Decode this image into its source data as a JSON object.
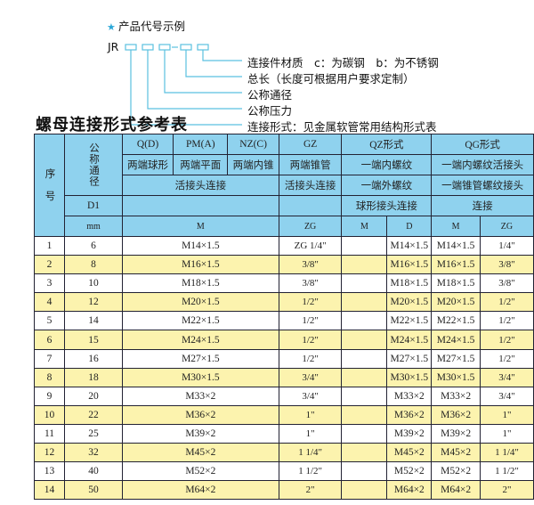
{
  "example": {
    "star_color": "#2aa7d8",
    "heading": "产品代号示例",
    "code_prefix": "JR",
    "box_color": "#5bc0e0",
    "labels": [
      "连接件材质　c：为碳钢　b：为不锈钢",
      "总长（长度可根据用户要求定制）",
      "公称通径",
      "公称压力",
      "连接形式：见金属软管常用结构形式表"
    ]
  },
  "table_title": "螺母连接形式参考表",
  "header": {
    "seq": "序　号",
    "nominal": "公称通径",
    "d1": "D1",
    "mm": "mm",
    "q": "Q(D)",
    "pm": "PM(A)",
    "nz": "NZ(C)",
    "gz": "GZ",
    "qz": "QZ形式",
    "qg": "QG形式",
    "q_desc": "两端球形",
    "pm_desc": "两端平面",
    "nz_desc": "两端内锥",
    "gz_desc": "两端锥管",
    "qz_desc1": "一端内螺纹",
    "qg_desc1": "一端内螺纹活接头",
    "union": "活接头连接",
    "gz_union": "活接头连接",
    "qz_desc2": "一端外螺纹",
    "qg_desc2": "一端锥管螺纹接头",
    "qz_desc3": "球形接头连接",
    "qg_desc3": "连接",
    "m": "M",
    "zg": "ZG",
    "qz_m": "M",
    "qz_d": "D",
    "qg_m": "M",
    "qg_zg": "ZG"
  },
  "colors": {
    "header_bg": "#8fd2ee",
    "stripe": "#fcf3ae"
  },
  "rows": [
    [
      "1",
      "6",
      "M14×1.5",
      "ZG 1/4\"",
      "",
      "M14×1.5",
      "M14×1.5",
      "1/4\""
    ],
    [
      "2",
      "8",
      "M16×1.5",
      "3/8\"",
      "",
      "M16×1.5",
      "M16×1.5",
      "3/8\""
    ],
    [
      "3",
      "10",
      "M18×1.5",
      "3/8\"",
      "",
      "M18×1.5",
      "M18×1.5",
      "3/8\""
    ],
    [
      "4",
      "12",
      "M20×1.5",
      "1/2\"",
      "",
      "M20×1.5",
      "M20×1.5",
      "1/2\""
    ],
    [
      "5",
      "14",
      "M22×1.5",
      "1/2\"",
      "",
      "M22×1.5",
      "M22×1.5",
      "1/2\""
    ],
    [
      "6",
      "15",
      "M24×1.5",
      "1/2\"",
      "",
      "M24×1.5",
      "M24×1.5",
      "1/2\""
    ],
    [
      "7",
      "16",
      "M27×1.5",
      "1/2\"",
      "",
      "M27×1.5",
      "M27×1.5",
      "1/2\""
    ],
    [
      "8",
      "18",
      "M30×1.5",
      "3/4\"",
      "",
      "M30×1.5",
      "M30×1.5",
      "3/4\""
    ],
    [
      "9",
      "20",
      "M33×2",
      "3/4\"",
      "",
      "M33×2",
      "M33×2",
      "3/4\""
    ],
    [
      "10",
      "22",
      "M36×2",
      "1\"",
      "",
      "M36×2",
      "M36×2",
      "1\""
    ],
    [
      "11",
      "25",
      "M39×2",
      "1\"",
      "",
      "M39×2",
      "M39×2",
      "1\""
    ],
    [
      "12",
      "32",
      "M45×2",
      "1 1/4\"",
      "",
      "M45×2",
      "M45×2",
      "1 1/4\""
    ],
    [
      "13",
      "40",
      "M52×2",
      "1 1/2\"",
      "",
      "M52×2",
      "M52×2",
      "1 1/2\""
    ],
    [
      "14",
      "50",
      "M64×2",
      "2\"",
      "",
      "M64×2",
      "M64×2",
      "2\""
    ]
  ]
}
